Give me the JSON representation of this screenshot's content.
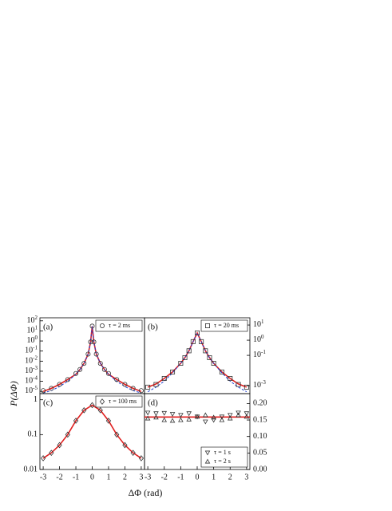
{
  "ylabel": "P(ΔΦ)",
  "xlabel": "ΔΦ (rad)",
  "chart_data": [
    {
      "type": "scatter",
      "panel": "(a)",
      "log": true,
      "legend": "upper right",
      "yaxis": "left",
      "xlim": [
        -3.2,
        3.2
      ],
      "ylim": [
        6e-06,
        200
      ],
      "yticks": [
        {
          "value": 100,
          "label": "10^2"
        },
        {
          "value": 10,
          "label": "10^1"
        },
        {
          "value": 1,
          "label": "10^0"
        },
        {
          "value": 0.1,
          "label": "10^-1"
        },
        {
          "value": 0.01,
          "label": "10^-2"
        },
        {
          "value": 0.001,
          "label": "10^-3"
        },
        {
          "value": 0.0001,
          "label": "10^-4"
        },
        {
          "value": 1e-05,
          "label": "10^-5"
        }
      ],
      "series": [
        {
          "name": "τ = 2 ms",
          "marker": "circle",
          "color": "#333333",
          "x": [
            -3,
            -2.5,
            -2,
            -1.5,
            -1,
            -0.75,
            -0.5,
            -0.25,
            -0.1,
            0,
            0.1,
            0.25,
            0.5,
            0.75,
            1,
            1.5,
            2,
            2.5,
            3
          ],
          "values": [
            1.2e-05,
            2e-05,
            5e-05,
            0.00015,
            0.0006,
            0.0015,
            0.006,
            0.05,
            0.8,
            30,
            0.8,
            0.05,
            0.006,
            0.0015,
            0.0006,
            0.00015,
            5e-05,
            2e-05,
            1.2e-05
          ]
        }
      ],
      "lines": [
        {
          "color": "#e02020",
          "dash": false,
          "x": [
            -3,
            -2.5,
            -2,
            -1.5,
            -1,
            -0.75,
            -0.5,
            -0.25,
            -0.1,
            0,
            0.1,
            0.25,
            0.5,
            0.75,
            1,
            1.5,
            2,
            2.5,
            3
          ],
          "values": [
            1e-05,
            2e-05,
            5e-05,
            0.00015,
            0.0005,
            0.0015,
            0.006,
            0.05,
            0.8,
            30,
            0.8,
            0.05,
            0.006,
            0.0015,
            0.0005,
            0.00015,
            5e-05,
            2e-05,
            1e-05
          ]
        },
        {
          "color": "#2040d0",
          "dash": true,
          "x": [
            -3,
            -2.5,
            -2,
            -1.5,
            -1,
            -0.75,
            -0.5,
            -0.25,
            -0.1,
            0,
            0.1,
            0.25,
            0.5,
            0.75,
            1,
            1.5,
            2,
            2.5,
            3
          ],
          "values": [
            7e-06,
            1.2e-05,
            3e-05,
            0.0001,
            0.0005,
            0.0015,
            0.006,
            0.05,
            0.8,
            30,
            0.8,
            0.05,
            0.006,
            0.0015,
            0.0005,
            0.0001,
            3e-05,
            1.2e-05,
            7e-06
          ]
        }
      ]
    },
    {
      "type": "scatter",
      "panel": "(b)",
      "log": true,
      "legend": "upper right",
      "yaxis": "right",
      "xlim": [
        -3.2,
        3.2
      ],
      "ylim": [
        0.0003,
        30
      ],
      "yticks": [
        {
          "value": 10,
          "label": "10^1"
        },
        {
          "value": 1,
          "label": "10^0"
        },
        {
          "value": 0.1,
          "label": "10^-1"
        },
        {
          "value": 0.001,
          "label": "10^-3"
        }
      ],
      "series": [
        {
          "name": "τ = 20 ms",
          "marker": "square",
          "color": "#333333",
          "x": [
            -3,
            -2.5,
            -2,
            -1.5,
            -1,
            -0.75,
            -0.5,
            -0.25,
            0,
            0.25,
            0.5,
            0.75,
            1,
            1.5,
            2,
            2.5,
            3
          ],
          "values": [
            0.0008,
            0.0012,
            0.003,
            0.008,
            0.03,
            0.07,
            0.2,
            0.8,
            3,
            0.8,
            0.2,
            0.07,
            0.03,
            0.008,
            0.003,
            0.0012,
            0.0008
          ]
        }
      ],
      "lines": [
        {
          "color": "#e02020",
          "dash": false,
          "x": [
            -3,
            -2.5,
            -2,
            -1.5,
            -1,
            -0.75,
            -0.5,
            -0.25,
            0,
            0.25,
            0.5,
            0.75,
            1,
            1.5,
            2,
            2.5,
            3
          ],
          "values": [
            0.0008,
            0.0013,
            0.003,
            0.008,
            0.03,
            0.07,
            0.2,
            0.8,
            3,
            0.8,
            0.2,
            0.07,
            0.03,
            0.008,
            0.003,
            0.0013,
            0.0008
          ]
        },
        {
          "color": "#2040d0",
          "dash": true,
          "x": [
            -3,
            -2.5,
            -2,
            -1.5,
            -1,
            -0.75,
            -0.5,
            -0.25,
            0,
            0.25,
            0.5,
            0.75,
            1,
            1.5,
            2,
            2.5,
            3
          ],
          "values": [
            0.0004,
            0.0008,
            0.002,
            0.007,
            0.03,
            0.07,
            0.2,
            0.8,
            3,
            0.8,
            0.2,
            0.07,
            0.03,
            0.007,
            0.002,
            0.0008,
            0.0004
          ]
        }
      ]
    },
    {
      "type": "scatter",
      "panel": "(c)",
      "log": true,
      "legend": "upper right",
      "yaxis": "left",
      "xlim": [
        -3.2,
        3.2
      ],
      "ylim": [
        0.01,
        1.5
      ],
      "xticks": [
        -3,
        -2,
        -1,
        0,
        1,
        2,
        3
      ],
      "yticks": [
        {
          "value": 1,
          "label": "1"
        },
        {
          "value": 0.1,
          "label": "0.1"
        },
        {
          "value": 0.01,
          "label": "0.01"
        }
      ],
      "series": [
        {
          "name": "τ = 100 ms",
          "marker": "diamond",
          "color": "#333333",
          "x": [
            -3,
            -2.5,
            -2,
            -1.5,
            -1,
            -0.5,
            0,
            0.5,
            1,
            1.5,
            2,
            2.5,
            3
          ],
          "values": [
            0.021,
            0.03,
            0.05,
            0.1,
            0.25,
            0.5,
            0.7,
            0.5,
            0.25,
            0.1,
            0.05,
            0.03,
            0.021
          ]
        }
      ],
      "lines": [
        {
          "color": "#e02020",
          "dash": false,
          "x": [
            -3,
            -2.5,
            -2,
            -1.5,
            -1,
            -0.5,
            0,
            0.5,
            1,
            1.5,
            2,
            2.5,
            3
          ],
          "values": [
            0.021,
            0.03,
            0.05,
            0.1,
            0.25,
            0.5,
            0.7,
            0.5,
            0.25,
            0.1,
            0.05,
            0.03,
            0.021
          ]
        }
      ]
    },
    {
      "type": "scatter",
      "panel": "(d)",
      "log": false,
      "legend": "lower right",
      "yaxis": "right",
      "xlim": [
        -3.2,
        3.2
      ],
      "ylim": [
        0,
        0.23
      ],
      "xticks": [
        -3,
        -2,
        -1,
        0,
        1,
        2,
        3
      ],
      "yticks": [
        {
          "value": 0,
          "label": "0.00"
        },
        {
          "value": 0.05,
          "label": "0.05"
        },
        {
          "value": 0.1,
          "label": "0.10"
        },
        {
          "value": 0.15,
          "label": "0.15"
        },
        {
          "value": 0.2,
          "label": "0.20"
        }
      ],
      "series": [
        {
          "name": "τ = 1 s",
          "marker": "tri-down",
          "color": "#333333",
          "x": [
            -3,
            -2.5,
            -2,
            -1.5,
            -1,
            -0.5,
            0,
            0.5,
            1,
            1.5,
            2,
            2.5,
            3
          ],
          "values": [
            0.172,
            0.17,
            0.171,
            0.168,
            0.165,
            0.17,
            0.16,
            0.145,
            0.15,
            0.16,
            0.165,
            0.172,
            0.17
          ]
        },
        {
          "name": "τ = 2 s",
          "marker": "tri-up",
          "color": "#333333",
          "x": [
            -3,
            -2.5,
            -2,
            -1.5,
            -1,
            -0.5,
            0,
            0.5,
            1,
            1.5,
            2,
            2.5,
            3
          ],
          "values": [
            0.155,
            0.158,
            0.15,
            0.148,
            0.15,
            0.152,
            0.16,
            0.165,
            0.158,
            0.15,
            0.155,
            0.165,
            0.16
          ]
        }
      ],
      "lines": [
        {
          "color": "#e02020",
          "dash": false,
          "x": [
            -3.2,
            3.2
          ],
          "values": [
            0.159,
            0.159
          ]
        }
      ]
    }
  ]
}
